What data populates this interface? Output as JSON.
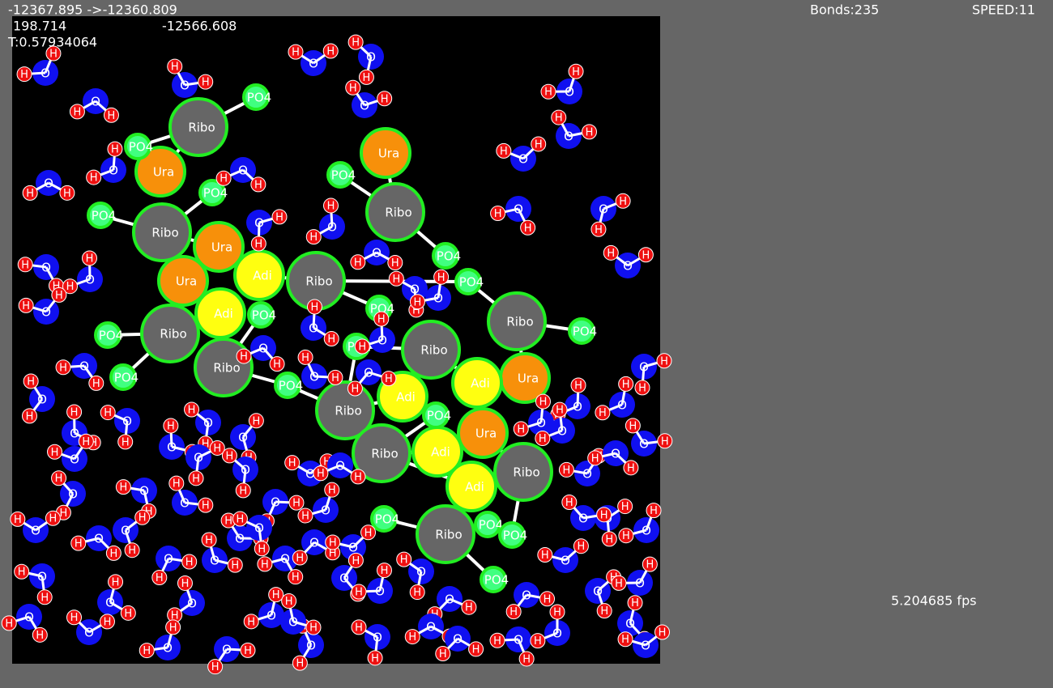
{
  "header": {
    "energy": "-12367.895  ->-12360.809",
    "value_a": "198.714",
    "value_b": "-12566.608",
    "temperature": "T:0.57934064",
    "bonds": "Bonds:235",
    "speed": "SPEED:11",
    "fps": "5.204685 fps"
  },
  "molecules": [
    "Ribo",
    "Ribo",
    "Ribo",
    "Ribo",
    "Ribo",
    "Ribo",
    "Ribo",
    "Ribo",
    "Ribo",
    "Ribo",
    "Ribo",
    "Ribo",
    "Ura",
    "Ura",
    "Ura",
    "Ura",
    "Ura",
    "Ura",
    "Adi",
    "Adi",
    "Adi",
    "Adi",
    "Adi",
    "Adi",
    "PO4",
    "PO4",
    "PO4",
    "PO4",
    "PO4",
    "PO4",
    "PO4",
    "PO4",
    "PO4",
    "PO4",
    "PO4",
    "PO4",
    "PO4",
    "PO4",
    "PO4",
    "PO4",
    "PO4",
    "PO4",
    "PO4"
  ],
  "waters": [
    [
      "O",
      "H",
      "H"
    ],
    [
      "O",
      "H",
      "H"
    ],
    [
      "O",
      "H",
      "H"
    ],
    [
      "O",
      "H",
      "H"
    ],
    [
      "O",
      "H",
      "H"
    ],
    [
      "O",
      "H",
      "H"
    ],
    [
      "O",
      "H",
      "H"
    ],
    [
      "O",
      "H",
      "H"
    ],
    [
      "O",
      "H",
      "H"
    ],
    [
      "O",
      "H",
      "H"
    ],
    [
      "O",
      "H",
      "H"
    ],
    [
      "O",
      "H",
      "H"
    ],
    [
      "O",
      "H",
      "H"
    ],
    [
      "O",
      "H",
      "H"
    ],
    [
      "O",
      "H",
      "H"
    ],
    [
      "O",
      "H",
      "H"
    ],
    [
      "O",
      "H",
      "H"
    ],
    [
      "O",
      "H",
      "H"
    ],
    [
      "O",
      "H",
      "H"
    ],
    [
      "O",
      "H",
      "H"
    ],
    [
      "O",
      "H",
      "H"
    ],
    [
      "O",
      "H",
      "H"
    ],
    [
      "O",
      "H",
      "H"
    ],
    [
      "O",
      "H",
      "H"
    ],
    [
      "O",
      "H",
      "H"
    ],
    [
      "O",
      "H",
      "H"
    ],
    [
      "O",
      "H",
      "H"
    ],
    [
      "O",
      "H",
      "H"
    ],
    [
      "O",
      "H",
      "H"
    ],
    [
      "O",
      "H",
      "H"
    ],
    [
      "O",
      "H",
      "H"
    ],
    [
      "O",
      "H",
      "H"
    ],
    [
      "O",
      "H",
      "H"
    ],
    [
      "O",
      "H",
      "H"
    ],
    [
      "O",
      "H",
      "H"
    ],
    [
      "O",
      "H",
      "H"
    ],
    [
      "O",
      "H",
      "H"
    ],
    [
      "O",
      "H",
      "H"
    ],
    [
      "O",
      "H",
      "H"
    ],
    [
      "O",
      "H",
      "H"
    ],
    [
      "O",
      "H",
      "H"
    ],
    [
      "O",
      "H",
      "H"
    ],
    [
      "O",
      "H",
      "H"
    ],
    [
      "O",
      "H",
      "H"
    ],
    [
      "O",
      "H",
      "H"
    ],
    [
      "O",
      "H",
      "H"
    ],
    [
      "O",
      "H",
      "H"
    ],
    [
      "O",
      "H",
      "H"
    ],
    [
      "O",
      "H",
      "H"
    ],
    [
      "O",
      "H",
      "H"
    ],
    [
      "O",
      "H",
      "H"
    ],
    [
      "O",
      "H",
      "H"
    ],
    [
      "O",
      "H",
      "H"
    ],
    [
      "O",
      "H",
      "H"
    ],
    [
      "O",
      "H",
      "H"
    ],
    [
      "O",
      "H",
      "H"
    ],
    [
      "O",
      "H",
      "H"
    ],
    [
      "O",
      "H",
      "H"
    ],
    [
      "O",
      "H",
      "H"
    ],
    [
      "O",
      "H",
      "H"
    ],
    [
      "O",
      "H",
      "H"
    ],
    [
      "O",
      "H",
      "H"
    ],
    [
      "O",
      "H",
      "H"
    ],
    [
      "O",
      "H",
      "H"
    ],
    [
      "O",
      "H",
      "H"
    ],
    [
      "O",
      "H",
      "H"
    ],
    [
      "O",
      "H",
      "H"
    ],
    [
      "O",
      "H",
      "H"
    ],
    [
      "O",
      "H",
      "H"
    ],
    [
      "O",
      "H",
      "H"
    ],
    [
      "O",
      "H",
      "H"
    ],
    [
      "O",
      "H",
      "H"
    ],
    [
      "O",
      "H",
      "H"
    ],
    [
      "O",
      "H",
      "H"
    ],
    [
      "O",
      "H",
      "H"
    ],
    [
      "O",
      "H",
      "H"
    ],
    [
      "O",
      "H",
      "H"
    ],
    [
      "O",
      "H",
      "H"
    ],
    [
      "O",
      "H",
      "H"
    ],
    [
      "O",
      "H",
      "H"
    ],
    [
      "O",
      "H",
      "H"
    ],
    [
      "O",
      "H",
      "H"
    ],
    [
      "O",
      "H",
      "H"
    ],
    [
      "O",
      "H",
      "H"
    ],
    [
      "O",
      "H",
      "H"
    ],
    [
      "O",
      "H",
      "H"
    ],
    [
      "O",
      "H",
      "H"
    ],
    [
      "O",
      "H",
      "H"
    ],
    [
      "O",
      "H",
      "H"
    ],
    [
      "O",
      "H",
      "H"
    ],
    [
      "O",
      "H",
      "H"
    ]
  ]
}
